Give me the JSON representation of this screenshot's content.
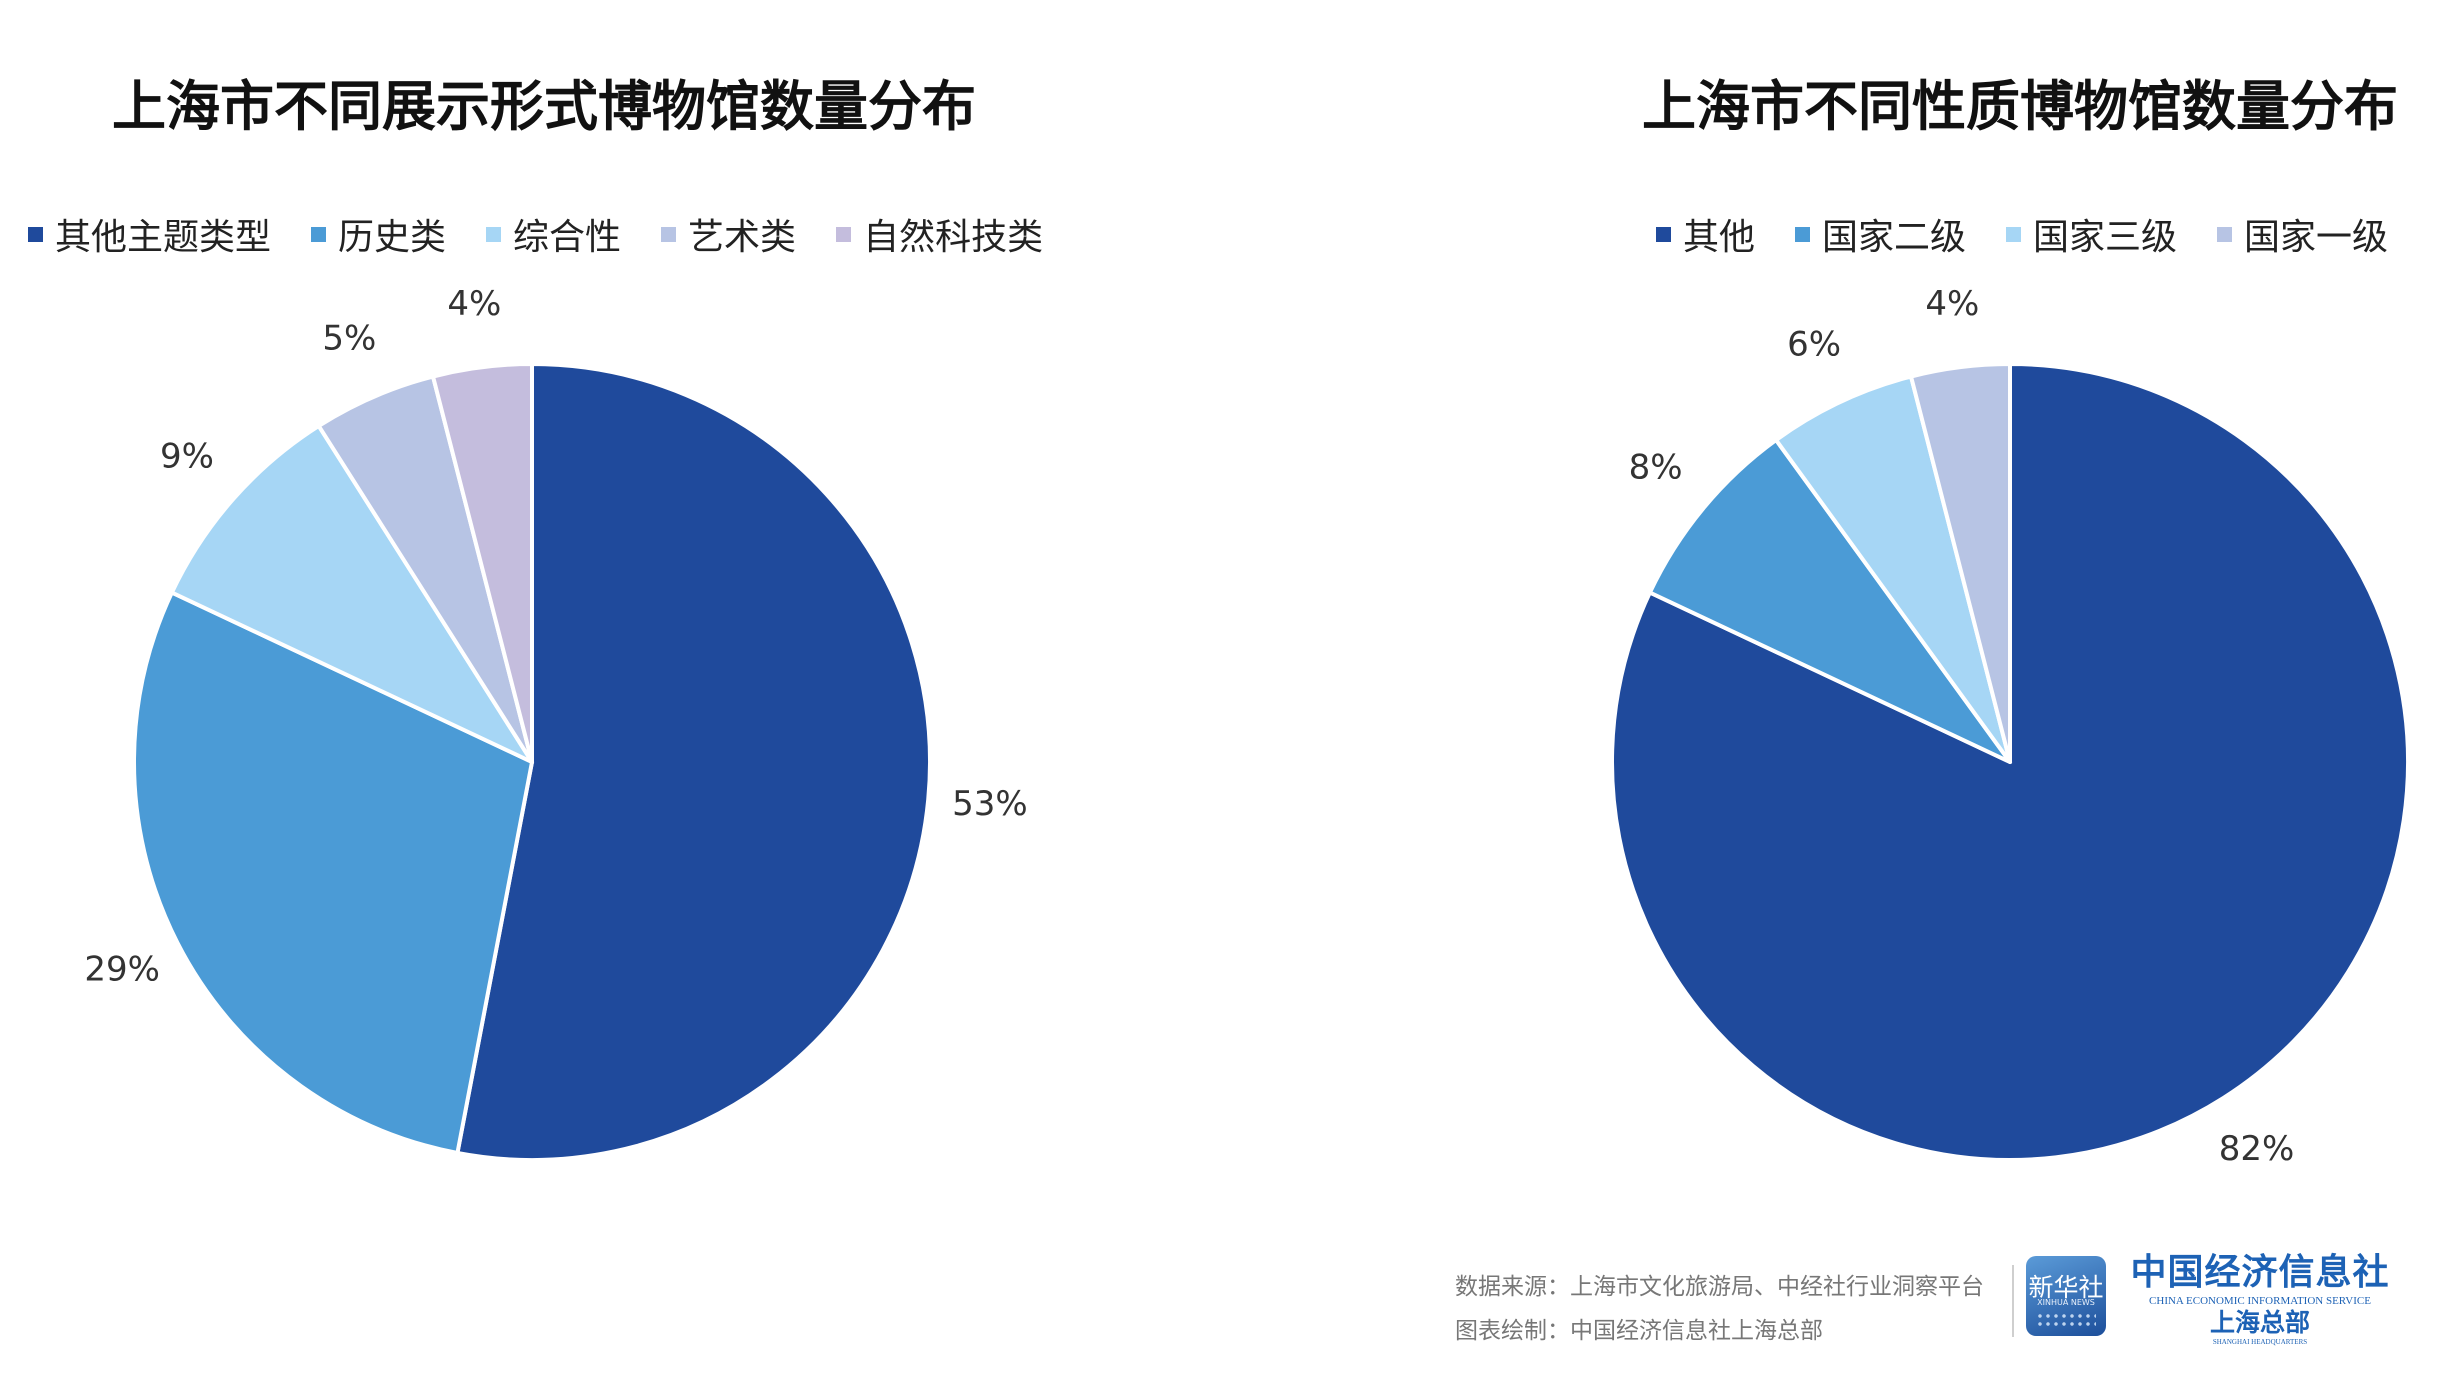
{
  "chart_data": [
    {
      "type": "pie",
      "title": "上海市不同展示形式博物馆数量分布",
      "categories": [
        "其他主题类型",
        "历史类",
        "综合性",
        "艺术类",
        "自然科技类"
      ],
      "values": [
        53,
        29,
        9,
        5,
        4
      ],
      "labels": [
        "53%",
        "29%",
        "9%",
        "5%",
        "4%"
      ],
      "colors": [
        "#1f4a9c",
        "#4b9bd6",
        "#a6d6f5",
        "#b7c4e4",
        "#c4bddd"
      ],
      "legend_position": "top"
    },
    {
      "type": "pie",
      "title": "上海市不同性质博物馆数量分布",
      "categories": [
        "其他",
        "国家二级",
        "国家三级",
        "国家一级"
      ],
      "values": [
        82,
        8,
        6,
        4
      ],
      "labels": [
        "82%",
        "8%",
        "6%",
        "4%"
      ],
      "colors": [
        "#1f4a9c",
        "#4b9bd6",
        "#a6d6f5",
        "#b7c4e4"
      ],
      "legend_position": "top"
    }
  ],
  "footer": {
    "source": "数据来源：上海市文化旅游局、中经社行业洞察平台",
    "credit": "图表绘制：中国经济信息社上海总部"
  },
  "branding": {
    "xinhua_logo_text": "新华社",
    "xinhua_logo_sub": "XINHUA NEWS",
    "org_name": "中国经济信息社",
    "org_name_en": "CHINA ECONOMIC INFORMATION SERVICE",
    "org_branch": "上海总部",
    "org_branch_en": "SHANGHAI HEADQUARTERS",
    "brand_color": "#1d62b5"
  }
}
